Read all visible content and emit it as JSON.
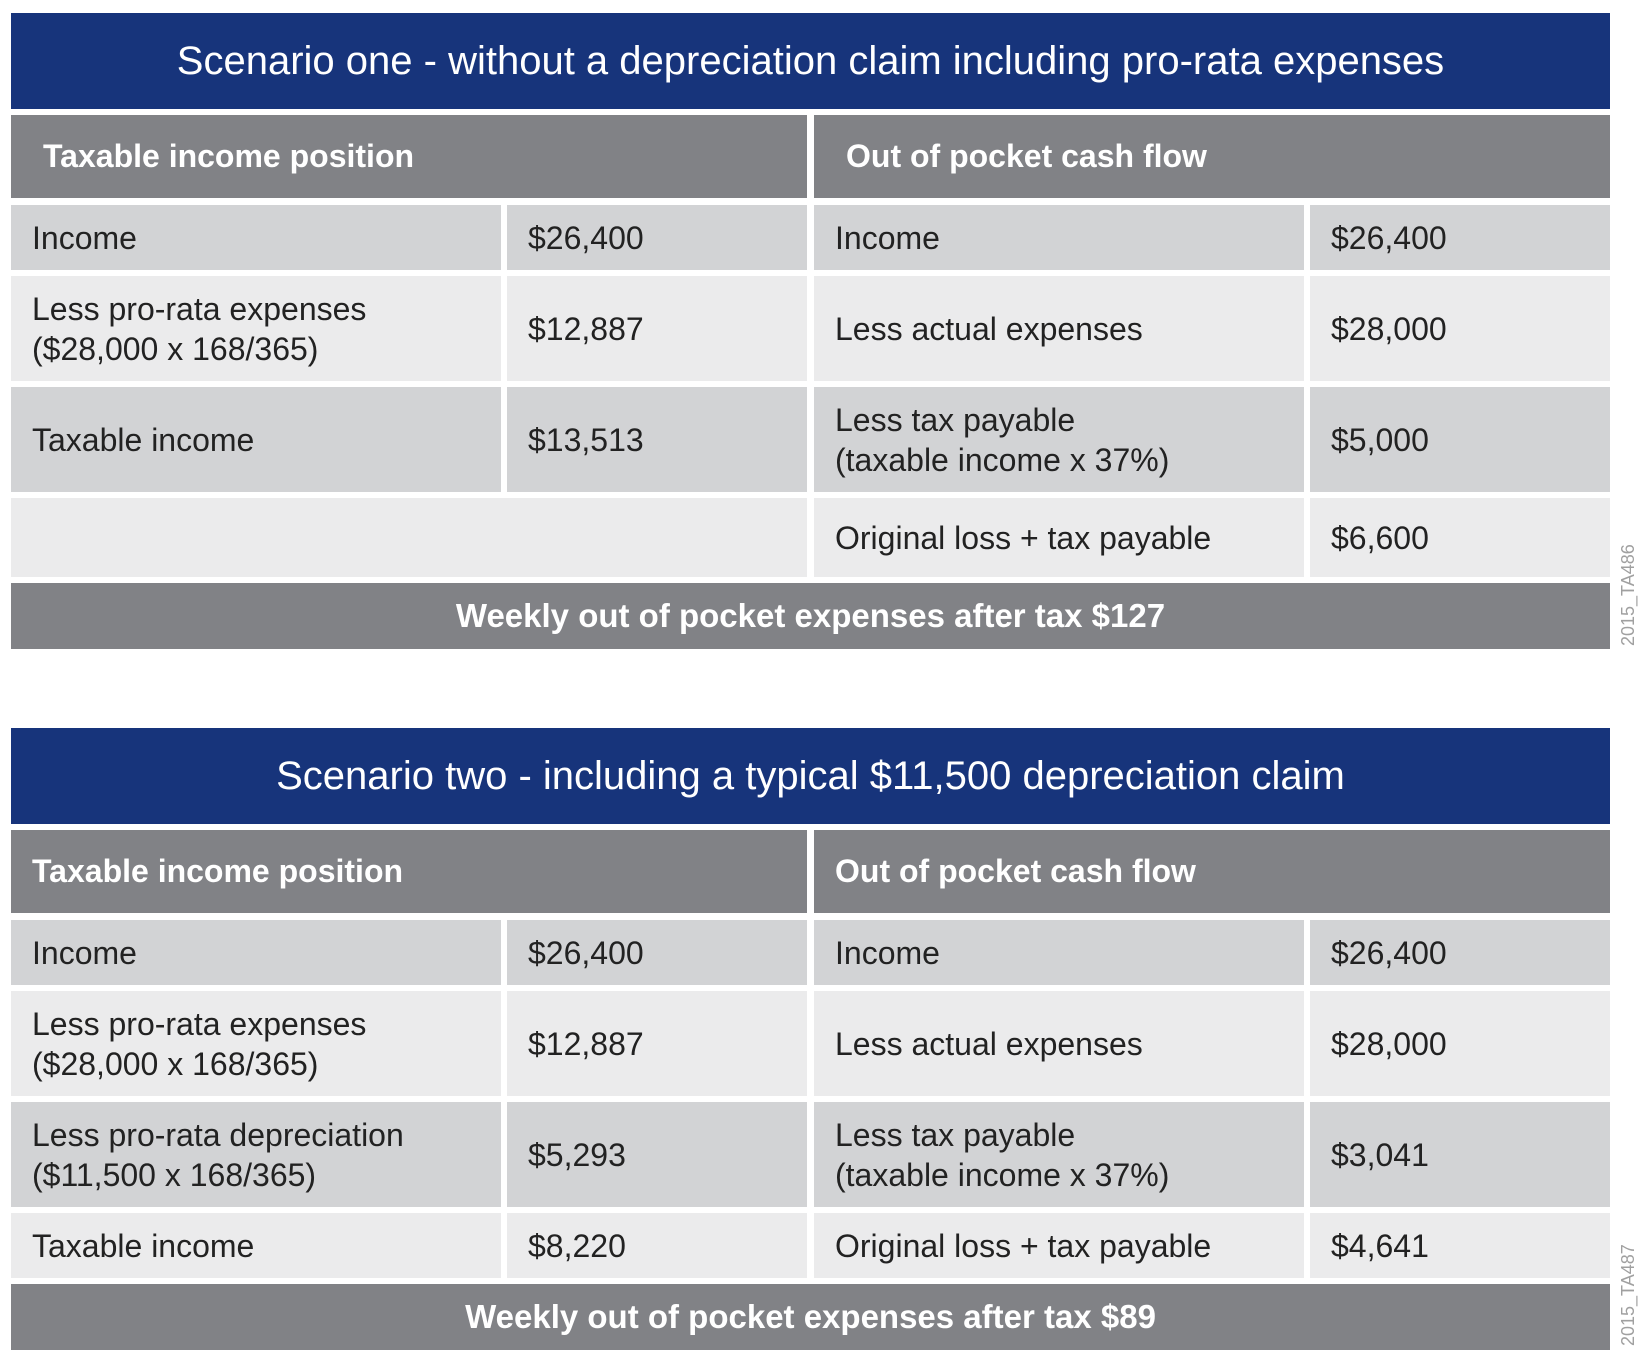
{
  "scenario_one": {
    "title": "Scenario one - without a depreciation claim including pro-rata expenses",
    "left_header": "Taxable income position",
    "right_header": "Out of pocket cash flow",
    "left_rows": [
      {
        "label": "Income",
        "value": "$26,400"
      },
      {
        "label": "Less pro-rata expenses\n($28,000 x 168/365)",
        "value": "$12,887"
      },
      {
        "label": "Taxable income",
        "value": "$13,513"
      }
    ],
    "right_rows": [
      {
        "label": "Income",
        "value": "$26,400"
      },
      {
        "label": "Less actual expenses",
        "value": "$28,000"
      },
      {
        "label": "Less tax payable\n(taxable income x 37%)",
        "value": "$5,000"
      },
      {
        "label": "Original loss + tax payable",
        "value": "$6,600"
      }
    ],
    "footer": "Weekly out of pocket expenses after tax $127",
    "code": "2015_TA486"
  },
  "scenario_two": {
    "title": "Scenario two - including a typical $11,500 depreciation claim",
    "left_header": "Taxable income position",
    "right_header": "Out of pocket cash flow",
    "left_rows": [
      {
        "label": "Income",
        "value": "$26,400"
      },
      {
        "label": "Less pro-rata expenses\n($28,000 x 168/365)",
        "value": "$12,887"
      },
      {
        "label": "Less pro-rata depreciation\n($11,500 x 168/365)",
        "value": "$5,293"
      },
      {
        "label": "Taxable income",
        "value": "$8,220"
      }
    ],
    "right_rows": [
      {
        "label": "Income",
        "value": "$26,400"
      },
      {
        "label": "Less actual expenses",
        "value": "$28,000"
      },
      {
        "label": "Less tax payable\n(taxable income x 37%)",
        "value": "$3,041"
      },
      {
        "label": "Original loss + tax payable",
        "value": "$4,641"
      }
    ],
    "footer": "Weekly out of pocket expenses after tax $89",
    "code": "2015_TA487"
  }
}
